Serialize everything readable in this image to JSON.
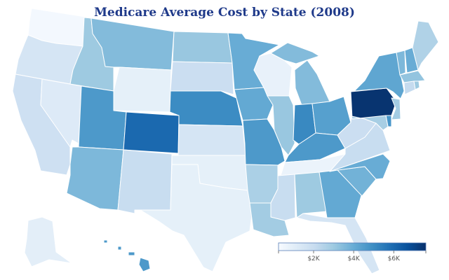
{
  "chart_data": {
    "type": "choropleth",
    "title": "Medicare Average Cost by State (2008)",
    "colorscale": {
      "name": "Blues",
      "colors": [
        "#f7fbff",
        "#deebf7",
        "#c6dbef",
        "#9ecae1",
        "#6baed6",
        "#4292c6",
        "#2171b5",
        "#08519c",
        "#08306b"
      ],
      "range": [
        250,
        7600
      ],
      "ticks": [
        2000,
        4000,
        6000
      ],
      "tick_labels": [
        "$2K",
        "$4K",
        "$6K"
      ]
    },
    "states": [
      {
        "id": "WA",
        "value": 400
      },
      {
        "id": "OR",
        "value": 1500
      },
      {
        "id": "CA",
        "value": 1800
      },
      {
        "id": "NV",
        "value": 1200
      },
      {
        "id": "ID",
        "value": 3000
      },
      {
        "id": "MT",
        "value": 3500
      },
      {
        "id": "WY",
        "value": 900
      },
      {
        "id": "UT",
        "value": 4600
      },
      {
        "id": "CO",
        "value": 6000
      },
      {
        "id": "AZ",
        "value": 3600
      },
      {
        "id": "NM",
        "value": 2000
      },
      {
        "id": "ND",
        "value": 3100
      },
      {
        "id": "SD",
        "value": 1900
      },
      {
        "id": "NE",
        "value": 5000
      },
      {
        "id": "KS",
        "value": 1500
      },
      {
        "id": "OK",
        "value": 900
      },
      {
        "id": "TX",
        "value": 900
      },
      {
        "id": "MN",
        "value": 4000
      },
      {
        "id": "IA",
        "value": 4100
      },
      {
        "id": "MO",
        "value": 4600
      },
      {
        "id": "AR",
        "value": 2700
      },
      {
        "id": "LA",
        "value": 2900
      },
      {
        "id": "WI",
        "value": 800
      },
      {
        "id": "IL",
        "value": 3100
      },
      {
        "id": "MI",
        "value": 3500
      },
      {
        "id": "IN",
        "value": 5100
      },
      {
        "id": "OH",
        "value": 4400
      },
      {
        "id": "KY",
        "value": 4600
      },
      {
        "id": "TN",
        "value": 700
      },
      {
        "id": "MS",
        "value": 2000
      },
      {
        "id": "AL",
        "value": 3000
      },
      {
        "id": "GA",
        "value": 4100
      },
      {
        "id": "FL",
        "value": 1500
      },
      {
        "id": "SC",
        "value": 3800
      },
      {
        "id": "NC",
        "value": 4000
      },
      {
        "id": "VA",
        "value": 2000
      },
      {
        "id": "WV",
        "value": 1900
      },
      {
        "id": "PA",
        "value": 7500
      },
      {
        "id": "NY",
        "value": 4200
      },
      {
        "id": "VT",
        "value": 3600
      },
      {
        "id": "NH",
        "value": 4000
      },
      {
        "id": "ME",
        "value": 2600
      },
      {
        "id": "MA",
        "value": 3200
      },
      {
        "id": "CT",
        "value": 2100
      },
      {
        "id": "RI",
        "value": 3000
      },
      {
        "id": "NJ",
        "value": 2900
      },
      {
        "id": "DE",
        "value": 4700
      },
      {
        "id": "MD",
        "value": 2800
      },
      {
        "id": "AK",
        "value": 1000
      },
      {
        "id": "HI",
        "value": 4600
      }
    ]
  }
}
